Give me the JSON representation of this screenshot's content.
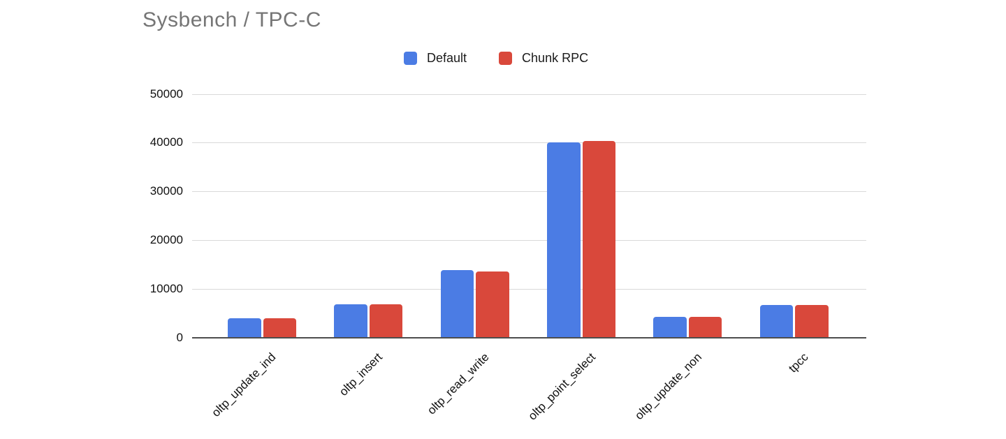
{
  "chart_data": {
    "type": "bar",
    "title": "Sysbench / TPC-C",
    "categories": [
      "oltp_update_ind",
      "oltp_insert",
      "oltp_read_write",
      "oltp_point_select",
      "oltp_update_non",
      "tpcc"
    ],
    "series": [
      {
        "name": "Default",
        "color": "#4b7ce4",
        "values": [
          3900,
          6800,
          13900,
          40000,
          4200,
          6600
        ]
      },
      {
        "name": "Chunk RPC",
        "color": "#d9483b",
        "values": [
          3900,
          6800,
          13600,
          40300,
          4200,
          6600
        ]
      }
    ],
    "xlabel": "",
    "ylabel": "",
    "ylim": [
      0,
      50000
    ],
    "ytick_step": 10000,
    "ytick_labels": [
      "0",
      "10000",
      "20000",
      "30000",
      "40000",
      "50000"
    ],
    "grid": true,
    "legend_position": "top-center",
    "x_label_rotation": -45,
    "colors": {
      "title": "#757575",
      "gridline": "#d9d9d9",
      "axis_line": "#4d4d4d",
      "tick_text": "#111111",
      "background": "#ffffff"
    }
  }
}
